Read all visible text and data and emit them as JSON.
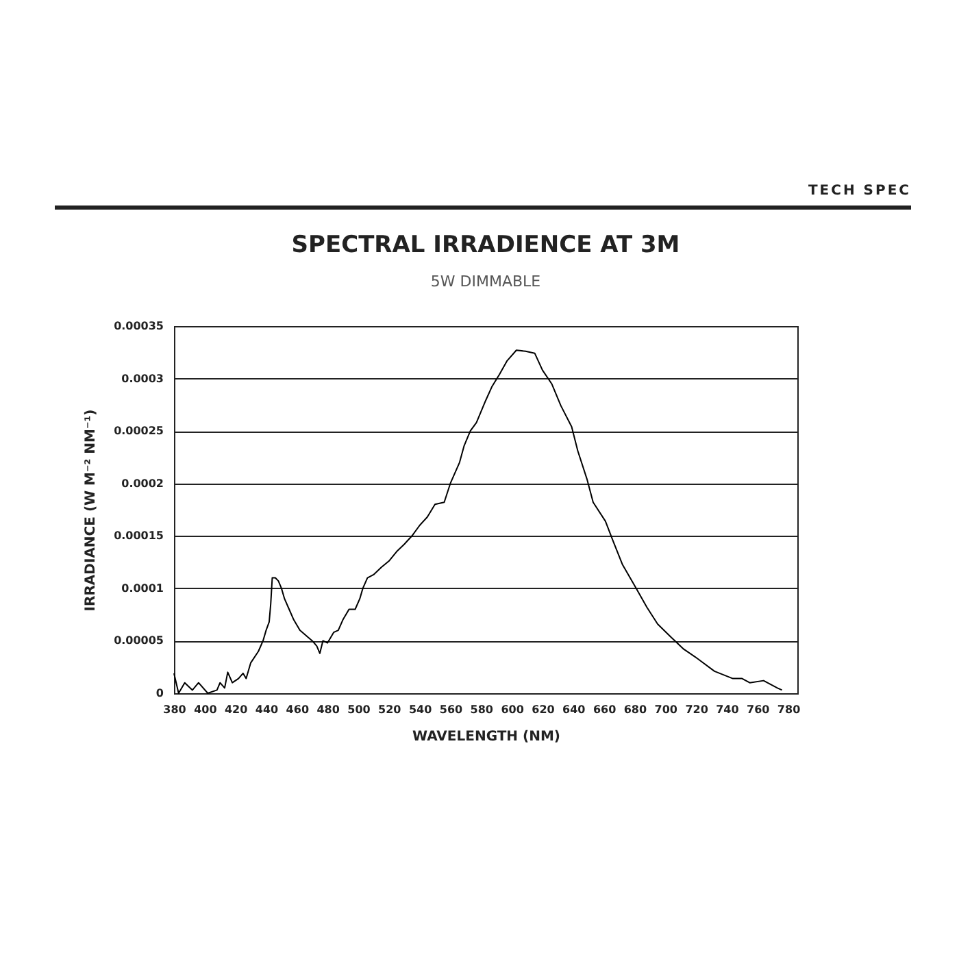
{
  "chart_data": {
    "type": "line",
    "title": "SPECTRAL IRRADIENCE AT 3M",
    "subtitle": "5W DIMMABLE",
    "xlabel": "WAVELENGTH (NM)",
    "ylabel": "IRRADIANCE (W M⁻² NM⁻¹)",
    "annotations": [
      "TECH SPEC"
    ],
    "x": [
      380,
      383,
      387,
      392,
      396,
      402,
      408,
      410,
      413,
      415,
      418,
      422,
      425,
      427,
      430,
      435,
      438,
      440,
      442,
      443,
      444,
      446,
      448,
      450,
      452,
      455,
      458,
      462,
      466,
      470,
      473,
      475,
      477,
      480,
      484,
      487,
      490,
      494,
      498,
      501,
      503,
      506,
      510,
      515,
      520,
      525,
      530,
      535,
      540,
      545,
      550,
      556,
      560,
      566,
      569,
      573,
      577,
      583,
      587,
      592,
      597,
      603,
      609,
      615,
      620,
      626,
      632,
      639,
      643,
      649,
      653,
      661,
      666,
      672,
      681,
      688,
      695,
      704,
      712,
      721,
      732,
      744,
      750,
      755,
      764,
      773,
      776
    ],
    "series": [
      {
        "color": "#000000",
        "values": [
          1.9e-05,
          0,
          1e-05,
          3e-06,
          1e-05,
          0,
          3e-06,
          1e-05,
          5e-06,
          2e-05,
          1e-05,
          1.4e-05,
          1.9e-05,
          1.4e-05,
          2.9e-05,
          4e-05,
          5e-05,
          6e-05,
          6.8e-05,
          8.5e-05,
          0.00011,
          0.00011,
          0.000107,
          0.0001,
          9e-05,
          8e-05,
          7e-05,
          6e-05,
          5.5e-05,
          5e-05,
          4.5e-05,
          3.8e-05,
          5e-05,
          4.8e-05,
          5.8e-05,
          6e-05,
          7e-05,
          8e-05,
          8e-05,
          9e-05,
          0.0001,
          0.00011,
          0.000113,
          0.00012,
          0.000126,
          0.000135,
          0.000142,
          0.00015,
          0.00016,
          0.000168,
          0.00018,
          0.000182,
          0.0002,
          0.00022,
          0.000236,
          0.00025,
          0.000258,
          0.000279,
          0.000292,
          0.000304,
          0.000317,
          0.000327,
          0.000326,
          0.000324,
          0.000308,
          0.000295,
          0.000274,
          0.000254,
          0.000231,
          0.000204,
          0.000182,
          0.000164,
          0.000145,
          0.000123,
          0.0001,
          8.2e-05,
          6.6e-05,
          5.3e-05,
          4.2e-05,
          3.3e-05,
          2.1e-05,
          1.4e-05,
          1.4e-05,
          1e-05,
          1.2e-05,
          5e-06,
          3e-06
        ]
      }
    ],
    "xlim": [
      380,
      786
    ],
    "xticks": [
      380,
      400,
      420,
      440,
      460,
      480,
      500,
      520,
      540,
      560,
      580,
      600,
      620,
      640,
      660,
      680,
      700,
      720,
      740,
      760,
      780
    ],
    "ylim": [
      0,
      0.00035
    ],
    "yticks": [
      0,
      {
        "value": 5e-05,
        "label": "0.00005"
      },
      0.0001,
      0.00015,
      0.0002,
      0.00025,
      0.0003,
      0.00035
    ],
    "grid": "y",
    "legend": false,
    "line_style": "solid",
    "marker": "none"
  }
}
